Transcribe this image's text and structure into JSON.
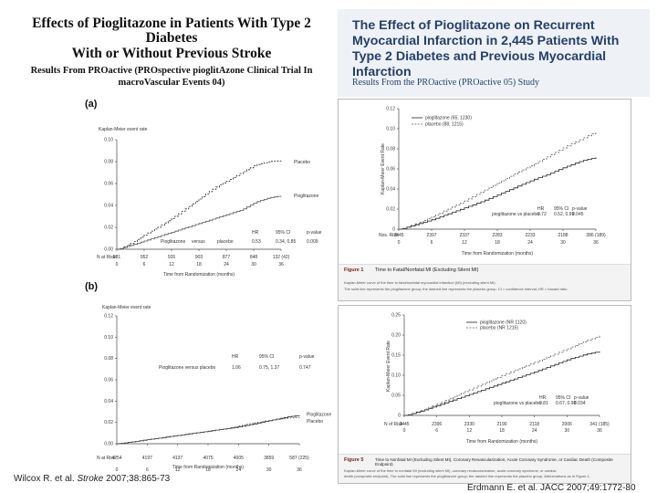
{
  "left": {
    "title_line1": "Effects of Pioglitazone in Patients With Type 2 Diabetes",
    "title_line2": "With or Without Previous Stroke",
    "subtitle_line1": "Results From PROactive (PROspective pioglitAzone Clinical Trial In",
    "subtitle_line2": "macroVascular Events 04)",
    "citation_prefix": "Wilcox R. et al. ",
    "citation_journal": "Stroke",
    "citation_suffix": " 2007;38:865-73",
    "panel_a": {
      "label": "(a)",
      "ylabel": "Kaplan-Meier event rate",
      "xlabel": "Time from Randomization (months)",
      "legend": [
        "Placebo",
        "Pioglitazone"
      ],
      "stats_header": [
        "HR",
        "95% CI",
        "p-value"
      ],
      "stats_row": [
        "Pioglitazone",
        "versus",
        "placebo",
        "0.53",
        "0.34, 0.85",
        "0.009"
      ],
      "at_risk_label": "N at Risk:",
      "at_risk": [
        "981",
        "952",
        "926",
        "903",
        "877",
        "848",
        "132 (42)"
      ]
    },
    "panel_b": {
      "label": "(b)",
      "ylabel": "Kaplan-Meier event rate",
      "xlabel": "Time from Randomization (months)",
      "legend": [
        "Pioglitazone",
        "Placebo"
      ],
      "stats_header": [
        "HR",
        "95% CI",
        "p-value"
      ],
      "stats_row": [
        "Pioglitazone versus placebo",
        "1.06",
        "0.75, 1.37",
        "0.747"
      ],
      "at_risk_label": "N at Risk:",
      "at_risk": [
        "4254",
        "4197",
        "4137",
        "4075",
        "4005",
        "3859",
        "587 (225)"
      ]
    }
  },
  "right": {
    "title_line1": "The Effect of Pioglitazone on Recurrent",
    "title_line2": "Myocardial Infarction in 2,445 Patients With",
    "title_line3": "Type 2 Diabetes and Previous Myocardial Infarction",
    "subtitle": "Results From the PROactive (PROactive 05) Study",
    "citation": "Erdmann E. et al. JACC 2007;49:1772-80",
    "figure1": {
      "ylabel": "Kaplan-Meier Event Rate",
      "xlabel": "Time from Randomization (months)",
      "legend": [
        "pioglitazone (65, 1230)",
        "placebo (88, 1215)"
      ],
      "stats_header": [
        "HR",
        "95% CI",
        "p-value"
      ],
      "stats_label": "pioglitazone vs placebo",
      "stats_values": [
        "0.72",
        "0.52, 0.99",
        "0.045"
      ],
      "at_risk_label": "Nos. Risk",
      "at_risk": [
        "2445",
        "2397",
        "2337",
        "2283",
        "2233",
        "2188",
        "386 (189)"
      ],
      "x_ticks": [
        "0",
        "6",
        "12",
        "18",
        "24",
        "30",
        "36"
      ],
      "y_ticks": [
        "0",
        "0.02",
        "0.04",
        "0.06",
        "0.08",
        "0.10",
        "0.12"
      ],
      "caption_tag": "Figure 1",
      "caption_title": "Time to Fatal/Nonfatal MI (Excluding Silent MI)",
      "caption_lines": [
        "Kaplan-Meier curve of the time to fatal/nonfatal myocardial infarction (MI) (excluding silent MI).",
        "The solid line represents the pioglitazone group; the dashed line represents the placebo group. CI = confidence interval; HR = hazard ratio."
      ]
    },
    "figure2": {
      "ylabel": "Kaplan-Meier Event Rate",
      "xlabel": "Time from Randomization (months)",
      "legend": [
        "pioglitazone (NR 1120)",
        "placebo (NR 1215)"
      ],
      "stats_header": [
        "HR",
        "95% CI",
        "p-value"
      ],
      "stats_label": "pioglitazone vs placebo",
      "stats_values": [
        "0.81",
        "0.67, 0.98",
        "0.034"
      ],
      "at_risk_label": "N of Risk",
      "at_risk": [
        "2445",
        "2396",
        "2330",
        "2190",
        "2118",
        "2006",
        "341 (185)"
      ],
      "x_ticks": [
        "0",
        "6",
        "12",
        "18",
        "24",
        "30",
        "36"
      ],
      "y_ticks": [
        "0",
        "0.05",
        "0.10",
        "0.15",
        "0.20",
        "0.25"
      ],
      "caption_tag": "Figure 5",
      "caption_title": "Time to Nonfatal MI (Excluding Silent MI), Coronary Revascularization, Acute Coronary Syndrome, or Cardiac Death (Composite Endpoint)",
      "caption_lines": [
        "Kaplan-Meier curve of the time to nonfatal MI (excluding silent MI), coronary revascularization, acute coronary syndrome, or cardiac",
        "death (composite endpoint). The solid line represents the pioglitazone group; the dashed line represents the placebo group. Abbreviations as in Figure 1."
      ]
    }
  },
  "chart_data": [
    {
      "type": "line",
      "title": "(a)",
      "xlabel": "Time from Randomization (months)",
      "ylabel": "Kaplan-Meier event rate",
      "x_ticks": [
        0,
        6,
        12,
        18,
        24,
        30,
        36
      ],
      "y_ticks": [
        0.0,
        0.02,
        0.04,
        0.06,
        0.08,
        0.1
      ],
      "ylim": [
        0,
        0.1
      ],
      "xlim": [
        0,
        36
      ],
      "series": [
        {
          "name": "Placebo",
          "x": [
            0,
            3,
            6,
            9,
            12,
            15,
            18,
            21,
            24,
            27,
            30,
            33,
            36
          ],
          "values": [
            0,
            0.006,
            0.014,
            0.021,
            0.029,
            0.038,
            0.047,
            0.056,
            0.063,
            0.07,
            0.077,
            0.08,
            0.081
          ]
        },
        {
          "name": "Pioglitazone",
          "x": [
            0,
            3,
            6,
            9,
            12,
            15,
            18,
            21,
            24,
            27,
            30,
            33,
            36
          ],
          "values": [
            0,
            0.004,
            0.008,
            0.012,
            0.016,
            0.02,
            0.024,
            0.028,
            0.032,
            0.036,
            0.043,
            0.047,
            0.049
          ]
        }
      ]
    },
    {
      "type": "line",
      "title": "(b)",
      "xlabel": "Time from Randomization (months)",
      "ylabel": "Kaplan-Meier event rate",
      "x_ticks": [
        0,
        6,
        12,
        18,
        24,
        30,
        36
      ],
      "y_ticks": [
        0.0,
        0.02,
        0.04,
        0.06,
        0.08,
        0.1,
        0.12
      ],
      "ylim": [
        0,
        0.12
      ],
      "xlim": [
        0,
        36
      ],
      "series": [
        {
          "name": "Pioglitazone",
          "x": [
            0,
            3,
            6,
            9,
            12,
            15,
            18,
            21,
            24,
            27,
            30,
            33,
            36
          ],
          "values": [
            0,
            0.002,
            0.004,
            0.006,
            0.008,
            0.01,
            0.012,
            0.014,
            0.016,
            0.019,
            0.022,
            0.025,
            0.027
          ]
        },
        {
          "name": "Placebo",
          "x": [
            0,
            3,
            6,
            9,
            12,
            15,
            18,
            21,
            24,
            27,
            30,
            33,
            36
          ],
          "values": [
            0,
            0.002,
            0.004,
            0.006,
            0.008,
            0.01,
            0.012,
            0.014,
            0.017,
            0.02,
            0.022,
            0.024,
            0.025
          ]
        }
      ]
    },
    {
      "type": "line",
      "title": "Time to Fatal/Nonfatal MI (Excluding Silent MI)",
      "xlabel": "Time from Randomization (months)",
      "ylabel": "Kaplan-Meier Event Rate",
      "x_ticks": [
        0,
        6,
        12,
        18,
        24,
        30,
        36
      ],
      "y_ticks": [
        0,
        0.02,
        0.04,
        0.06,
        0.08,
        0.1,
        0.12
      ],
      "ylim": [
        0,
        0.12
      ],
      "xlim": [
        0,
        36
      ],
      "series": [
        {
          "name": "pioglitazone (65, 1230)",
          "x": [
            0,
            3,
            6,
            9,
            12,
            15,
            18,
            21,
            24,
            27,
            30,
            33,
            36
          ],
          "values": [
            0,
            0.005,
            0.01,
            0.016,
            0.022,
            0.028,
            0.035,
            0.042,
            0.049,
            0.055,
            0.062,
            0.068,
            0.072
          ]
        },
        {
          "name": "placebo (88, 1215)",
          "x": [
            0,
            3,
            6,
            9,
            12,
            15,
            18,
            21,
            24,
            27,
            30,
            33,
            36
          ],
          "values": [
            0,
            0.006,
            0.013,
            0.021,
            0.029,
            0.038,
            0.047,
            0.056,
            0.064,
            0.073,
            0.082,
            0.09,
            0.098
          ]
        }
      ]
    },
    {
      "type": "line",
      "title": "Time to Nonfatal MI (Excluding Silent MI), Coronary Revascularization, Acute Coronary Syndrome, or Cardiac Death (Composite Endpoint)",
      "xlabel": "Time from Randomization (months)",
      "ylabel": "Kaplan-Meier Event Rate",
      "x_ticks": [
        0,
        6,
        12,
        18,
        24,
        30,
        36
      ],
      "y_ticks": [
        0,
        0.05,
        0.1,
        0.15,
        0.2,
        0.25
      ],
      "ylim": [
        0,
        0.25
      ],
      "xlim": [
        0,
        36
      ],
      "series": [
        {
          "name": "pioglitazone (NR 1120)",
          "x": [
            0,
            3,
            6,
            9,
            12,
            15,
            18,
            21,
            24,
            27,
            30,
            33,
            36
          ],
          "values": [
            0,
            0.012,
            0.026,
            0.04,
            0.054,
            0.068,
            0.082,
            0.096,
            0.11,
            0.125,
            0.14,
            0.152,
            0.16
          ]
        },
        {
          "name": "placebo (NR 1215)",
          "x": [
            0,
            3,
            6,
            9,
            12,
            15,
            18,
            21,
            24,
            27,
            30,
            33,
            36
          ],
          "values": [
            0,
            0.014,
            0.03,
            0.048,
            0.066,
            0.084,
            0.101,
            0.118,
            0.134,
            0.15,
            0.168,
            0.185,
            0.2
          ]
        }
      ]
    }
  ]
}
